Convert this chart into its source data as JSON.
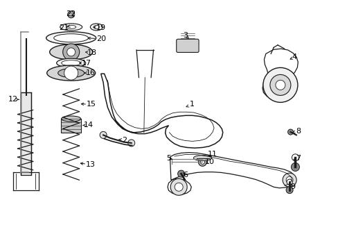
{
  "bg_color": "#ffffff",
  "line_color": "#1a1a1a",
  "text_color": "#000000",
  "fig_width": 4.89,
  "fig_height": 3.6,
  "dpi": 100,
  "label_positions": {
    "22": [
      0.215,
      0.058,
      0.228,
      0.072,
      "right"
    ],
    "21": [
      0.193,
      0.14,
      0.21,
      0.148,
      "right"
    ],
    "19": [
      0.298,
      0.14,
      0.272,
      0.148,
      "left"
    ],
    "20": [
      0.298,
      0.178,
      0.258,
      0.178,
      "left"
    ],
    "18": [
      0.27,
      0.218,
      0.248,
      0.222,
      "left"
    ],
    "17": [
      0.255,
      0.258,
      0.233,
      0.26,
      "left"
    ],
    "16": [
      0.268,
      0.295,
      0.245,
      0.298,
      "left"
    ],
    "15": [
      0.268,
      0.418,
      0.238,
      0.418,
      "left"
    ],
    "14": [
      0.262,
      0.532,
      0.24,
      0.532,
      "left"
    ],
    "13": [
      0.265,
      0.665,
      0.228,
      0.66,
      "left"
    ],
    "12": [
      0.038,
      0.395,
      0.065,
      0.395,
      "right"
    ],
    "3": [
      0.545,
      0.148,
      0.558,
      0.162,
      "right"
    ],
    "1": [
      0.565,
      0.415,
      0.545,
      0.428,
      "right"
    ],
    "2": [
      0.368,
      0.562,
      0.345,
      0.558,
      "right"
    ],
    "4": [
      0.868,
      0.228,
      0.855,
      0.242,
      "right"
    ],
    "5": [
      0.508,
      0.635,
      0.522,
      0.642,
      "right"
    ],
    "6": [
      0.548,
      0.7,
      0.548,
      0.688,
      "right"
    ],
    "7": [
      0.878,
      0.635,
      0.865,
      0.642,
      "right"
    ],
    "8": [
      0.878,
      0.532,
      0.862,
      0.54,
      "right"
    ],
    "9": [
      0.862,
      0.748,
      0.855,
      0.738,
      "right"
    ],
    "10": [
      0.608,
      0.648,
      0.595,
      0.645,
      "left"
    ],
    "11": [
      0.618,
      0.618,
      0.605,
      0.622,
      "left"
    ]
  }
}
